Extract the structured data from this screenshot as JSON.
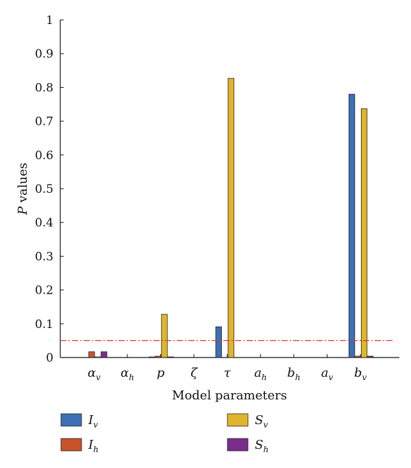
{
  "chart_data": {
    "type": "bar",
    "xlabel": "Model parameters",
    "ylabel_italic": "P",
    "ylabel_rest": " values",
    "ylim": [
      0,
      1
    ],
    "yticks": [
      "0",
      "0.1",
      "0.2",
      "0.3",
      "0.4",
      "0.5",
      "0.6",
      "0.7",
      "0.8",
      "0.9",
      "1"
    ],
    "categories": [
      {
        "base": "α",
        "sub": "v"
      },
      {
        "base": "α",
        "sub": "h"
      },
      {
        "base": "p",
        "sub": ""
      },
      {
        "base": "ζ",
        "sub": ""
      },
      {
        "base": "τ",
        "sub": ""
      },
      {
        "base": "a",
        "sub": "h"
      },
      {
        "base": "b",
        "sub": "h"
      },
      {
        "base": "a",
        "sub": "v"
      },
      {
        "base": "b",
        "sub": "v"
      }
    ],
    "series": [
      {
        "name_base": "I",
        "name_sub": "v",
        "color": "#3d6fb6",
        "values": [
          0,
          0,
          0.002,
          0,
          0.091,
          0,
          0,
          0,
          0.78
        ]
      },
      {
        "name_base": "I",
        "name_sub": "h",
        "color": "#c8532a",
        "values": [
          0.017,
          0,
          0.004,
          0,
          0,
          0,
          0,
          0,
          0.004
        ]
      },
      {
        "name_base": "S",
        "name_sub": "v",
        "color": "#e0b52b",
        "values": [
          0.002,
          0,
          0.128,
          0,
          0.827,
          0,
          0,
          0,
          0.737
        ]
      },
      {
        "name_base": "S",
        "name_sub": "h",
        "color": "#7b2d8b",
        "values": [
          0.017,
          0,
          0.002,
          0,
          0,
          0,
          0,
          0,
          0.004
        ]
      }
    ],
    "threshold": {
      "value": 0.05,
      "color": "#d9382c",
      "style": "dash-dot"
    },
    "grid": false,
    "legend_position": "bottom"
  }
}
